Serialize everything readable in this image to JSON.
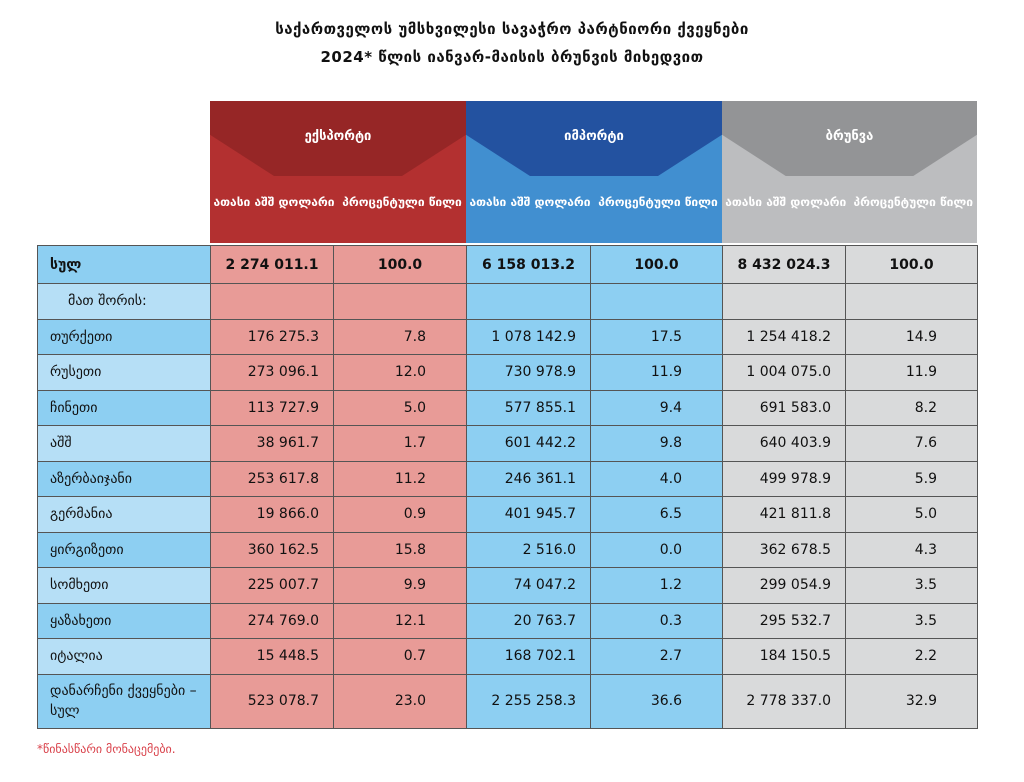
{
  "title": {
    "line1": "საქართველოს უმსხვილესი სავაჭრო პარტნიორი ქვეყნები",
    "line2": "2024* წლის იანვარ-მაისის ბრუნვის მიხედვით"
  },
  "groups": [
    {
      "name": "ექსპორტი",
      "col1": "ათასი აშშ დოლარი",
      "col2": "პროცენტული წილი",
      "dark": "#962626",
      "light": "#b33030",
      "cell": "#e89b97"
    },
    {
      "name": "იმპორტი",
      "col1": "ათასი აშშ დოლარი",
      "col2": "პროცენტული წილი",
      "dark": "#2352a0",
      "light": "#418fd0",
      "cell": "#8dcff2"
    },
    {
      "name": "ბრუნვა",
      "col1": "ათასი აშშ დოლარი",
      "col2": "პროცენტული წილი",
      "dark": "#939496",
      "light": "#bcbdbf",
      "cell": "#d9dadb"
    }
  ],
  "rows": [
    {
      "label": "სულ",
      "v": [
        "2 274 011.1",
        "100.0",
        "6 158 013.2",
        "100.0",
        "8 432 024.3",
        "100.0"
      ],
      "bold": true
    },
    {
      "label": "მათ შორის:",
      "v": [
        "",
        "",
        "",
        "",
        "",
        ""
      ],
      "indent": true
    },
    {
      "label": "თურქეთი",
      "v": [
        "176 275.3",
        "7.8",
        "1 078 142.9",
        "17.5",
        "1 254 418.2",
        "14.9"
      ]
    },
    {
      "label": "რუსეთი",
      "v": [
        "273 096.1",
        "12.0",
        "730 978.9",
        "11.9",
        "1 004 075.0",
        "11.9"
      ]
    },
    {
      "label": "ჩინეთი",
      "v": [
        "113 727.9",
        "5.0",
        "577 855.1",
        "9.4",
        "691 583.0",
        "8.2"
      ]
    },
    {
      "label": "აშშ",
      "v": [
        "38 961.7",
        "1.7",
        "601 442.2",
        "9.8",
        "640 403.9",
        "7.6"
      ]
    },
    {
      "label": "აზერბაიჯანი",
      "v": [
        "253 617.8",
        "11.2",
        "246 361.1",
        "4.0",
        "499 978.9",
        "5.9"
      ]
    },
    {
      "label": "გერმანია",
      "v": [
        "19 866.0",
        "0.9",
        "401 945.7",
        "6.5",
        "421 811.8",
        "5.0"
      ]
    },
    {
      "label": "ყირგიზეთი",
      "v": [
        "360 162.5",
        "15.8",
        "2 516.0",
        "0.0",
        "362 678.5",
        "4.3"
      ]
    },
    {
      "label": "სომხეთი",
      "v": [
        "225 007.7",
        "9.9",
        "74 047.2",
        "1.2",
        "299 054.9",
        "3.5"
      ]
    },
    {
      "label": "ყაზახეთი",
      "v": [
        "274 769.0",
        "12.1",
        "20 763.7",
        "0.3",
        "295 532.7",
        "3.5"
      ]
    },
    {
      "label": "იტალია",
      "v": [
        "15 448.5",
        "0.7",
        "168 702.1",
        "2.7",
        "184 150.5",
        "2.2"
      ]
    },
    {
      "label": "დანარჩენი ქვეყნები – სულ",
      "v": [
        "523 078.7",
        "23.0",
        "2 255 258.3",
        "36.6",
        "2 778 337.0",
        "32.9"
      ],
      "tall": true
    }
  ],
  "footnote": "*წინასწარი მონაცემები."
}
